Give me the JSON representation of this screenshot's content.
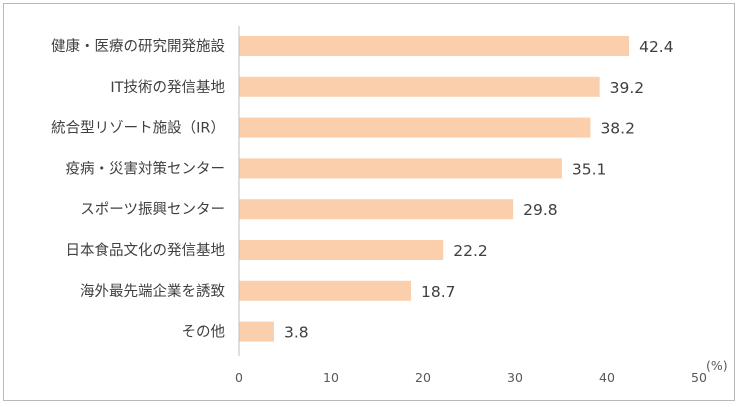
{
  "chart_data": {
    "type": "bar",
    "orientation": "horizontal",
    "categories": [
      "健康・医療の研究開発施設",
      "IT技術の発信基地",
      "統合型リゾート施設（IR）",
      "疫病・災害対策センター",
      "スポーツ振興センター",
      "日本食品文化の発信基地",
      "海外最先端企業を誘致",
      "その他"
    ],
    "values": [
      42.4,
      39.2,
      38.2,
      35.1,
      29.8,
      22.2,
      18.7,
      3.8
    ],
    "xlim": [
      0,
      50
    ],
    "x_ticks": [
      0,
      10,
      20,
      30,
      40,
      50
    ],
    "unit_label": "(%)",
    "bar_color": "#fbcfab",
    "grid": false,
    "title": "",
    "xlabel": "",
    "ylabel": ""
  }
}
